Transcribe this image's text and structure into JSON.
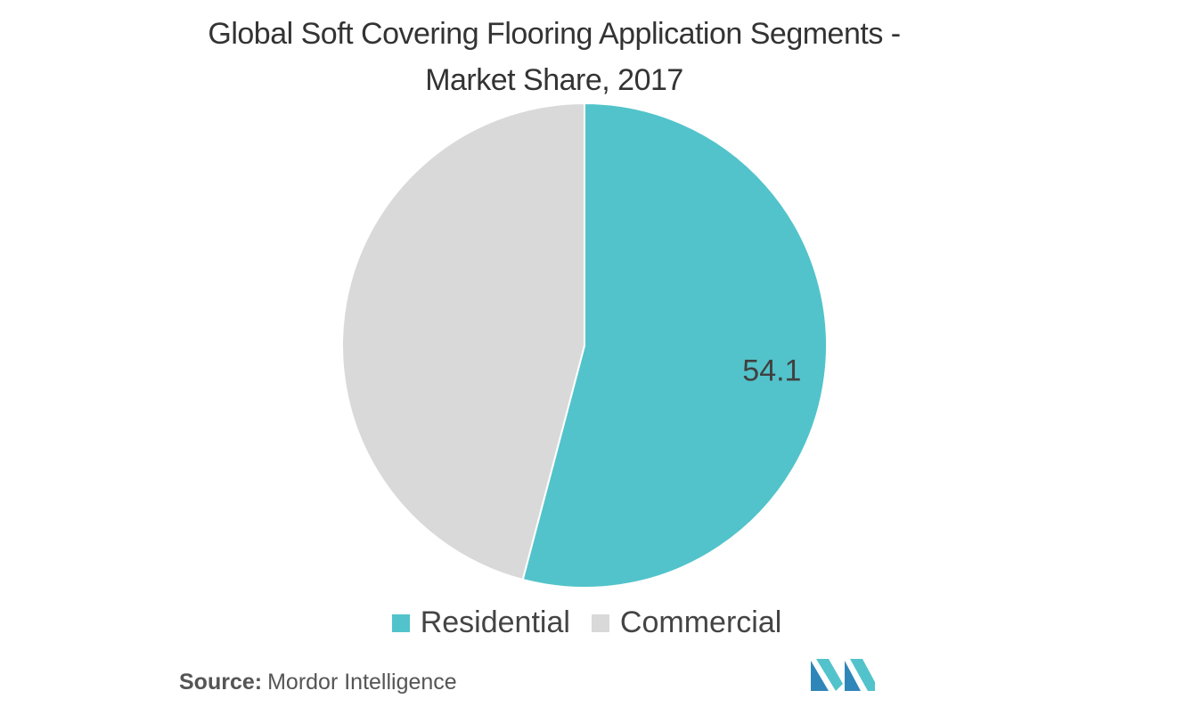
{
  "title_line1": "Global Soft Covering Flooring Application Segments -",
  "title_line2": "Market Share, 2017",
  "source_label": "Source:",
  "source_text": "Mordor Intelligence",
  "colors": {
    "residential": "#52c3ca",
    "commercial": "#d9d9d9"
  },
  "logo_icon": "mordor-intelligence-logo-icon",
  "chart_data": {
    "type": "pie",
    "title": "Global Soft Covering Flooring Application Segments - Market Share, 2017",
    "slices": [
      {
        "name": "Residential",
        "value": 54.1,
        "color": "#52c3ca",
        "label": "54.1"
      },
      {
        "name": "Commercial",
        "value": 45.9,
        "color": "#d9d9d9",
        "label": ""
      }
    ],
    "legend": {
      "position": "bottom",
      "entries": [
        "Residential",
        "Commercial"
      ]
    }
  }
}
